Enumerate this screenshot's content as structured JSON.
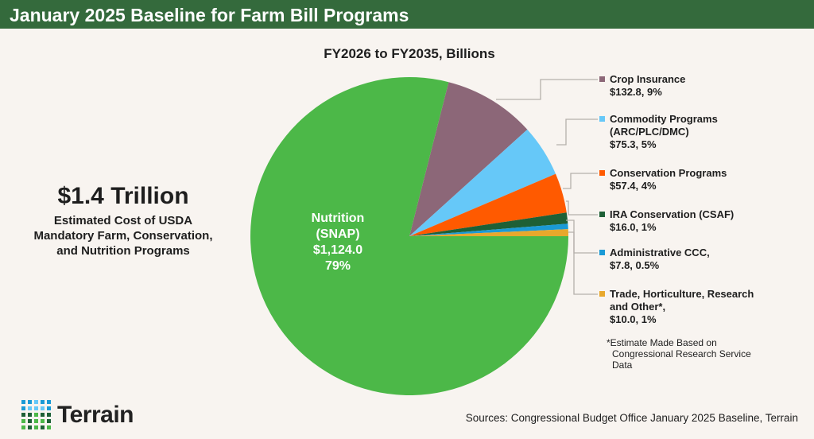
{
  "title": "January 2025 Baseline for Farm Bill Programs",
  "headline": {
    "value": "$1.4 Trillion",
    "desc": [
      "Estimated Cost of USDA",
      "Mandatory Farm, Conservation,",
      "and Nutrition Programs"
    ]
  },
  "footnote": [
    "*Estimate Made Based on",
    "Congressional Research Service",
    "Data"
  ],
  "sources": "Sources: Congressional Budget Office January 2025 Baseline, Terrain",
  "logo": {
    "text": "Terrain"
  },
  "colors": {
    "header": "#346a3c",
    "background": "#f8f4f0"
  },
  "chart_data": {
    "type": "pie",
    "subtitle": "FY2026 to FY2035, Billions",
    "slices": [
      {
        "name": "Nutrition (SNAP)",
        "lines": [
          "Nutrition",
          "(SNAP)",
          "$1,124.0",
          "79%"
        ],
        "value": 1124.0,
        "percent": "79%",
        "color": "#4cb848"
      },
      {
        "name": "Crop Insurance",
        "lines": [
          "Crop Insurance",
          "$132.8, 9%"
        ],
        "value": 132.8,
        "percent": "9%",
        "color": "#8c6778"
      },
      {
        "name": "Commodity Programs (ARC/PLC/DMC)",
        "lines": [
          "Commodity Programs",
          "(ARC/PLC/DMC)",
          "$75.3, 5%"
        ],
        "value": 75.3,
        "percent": "5%",
        "color": "#66c8f8"
      },
      {
        "name": "Conservation Programs",
        "lines": [
          "Conservation Programs",
          "$57.4, 4%"
        ],
        "value": 57.4,
        "percent": "4%",
        "color": "#ff5a00"
      },
      {
        "name": "IRA Conservation (CSAF)",
        "lines": [
          "IRA Conservation (CSAF)",
          "$16.0, 1%"
        ],
        "value": 16.0,
        "percent": "1%",
        "color": "#1e6036"
      },
      {
        "name": "Administrative CCC",
        "lines": [
          "Administrative CCC,",
          "$7.8, 0.5%"
        ],
        "value": 7.8,
        "percent": "0.5%",
        "color": "#1a9ad6"
      },
      {
        "name": "Trade, Horticulture, Research and Other*",
        "lines": [
          "Trade, Horticulture, Research",
          "and Other*,",
          "$10.0, 1%"
        ],
        "value": 10.0,
        "percent": "1%",
        "color": "#e8a82c"
      }
    ]
  }
}
